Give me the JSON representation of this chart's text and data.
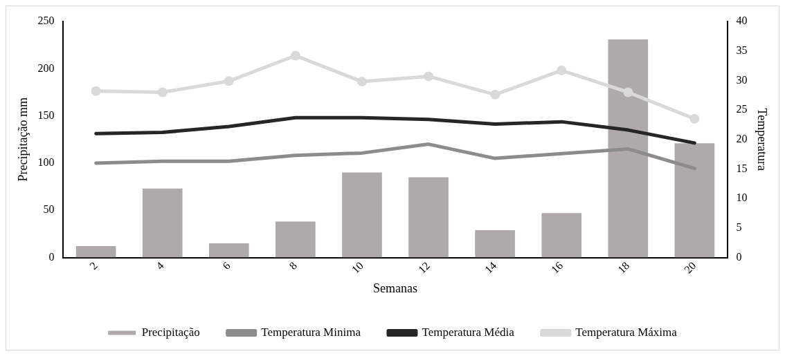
{
  "chart_data": {
    "type": "bar",
    "xlabel": "Semanas",
    "ylabel": "Precipitação mm",
    "y2label": "Temperatura",
    "categories": [
      "2",
      "4",
      "6",
      "8",
      "10",
      "12",
      "14",
      "16",
      "18",
      "20"
    ],
    "series": [
      {
        "name": "Precipitação",
        "color": "#aeaaaa",
        "values": [
          12,
          73,
          15,
          38,
          90,
          85,
          29,
          47,
          231,
          121
        ]
      },
      {
        "name": "Temperatura Minima",
        "type": "line",
        "axis": "y2",
        "color": "#8c8c8c",
        "marker": "none",
        "values": [
          16.0,
          16.3,
          16.3,
          17.3,
          17.7,
          19.2,
          16.8,
          17.6,
          18.4,
          15.1
        ]
      },
      {
        "name": "Temperatura Média",
        "type": "line",
        "axis": "y2",
        "color": "#262626",
        "marker": "none",
        "values": [
          21.0,
          21.2,
          22.2,
          23.7,
          23.7,
          23.4,
          22.6,
          23.0,
          21.6,
          19.4
        ]
      },
      {
        "name": "Temperatura Máxima",
        "type": "line",
        "axis": "y2",
        "color": "#d9d9d9",
        "marker": "circle",
        "values": [
          28.2,
          28.0,
          29.9,
          34.2,
          29.8,
          30.7,
          27.6,
          31.7,
          28.0,
          23.5
        ]
      }
    ],
    "ylim": [
      0,
      250
    ],
    "yticks": [
      0,
      50,
      100,
      150,
      200,
      250
    ],
    "y2lim": [
      0,
      40
    ],
    "y2ticks": [
      0,
      5,
      10,
      15,
      20,
      25,
      30,
      35,
      40
    ],
    "grid": false,
    "legend": "bottom"
  }
}
